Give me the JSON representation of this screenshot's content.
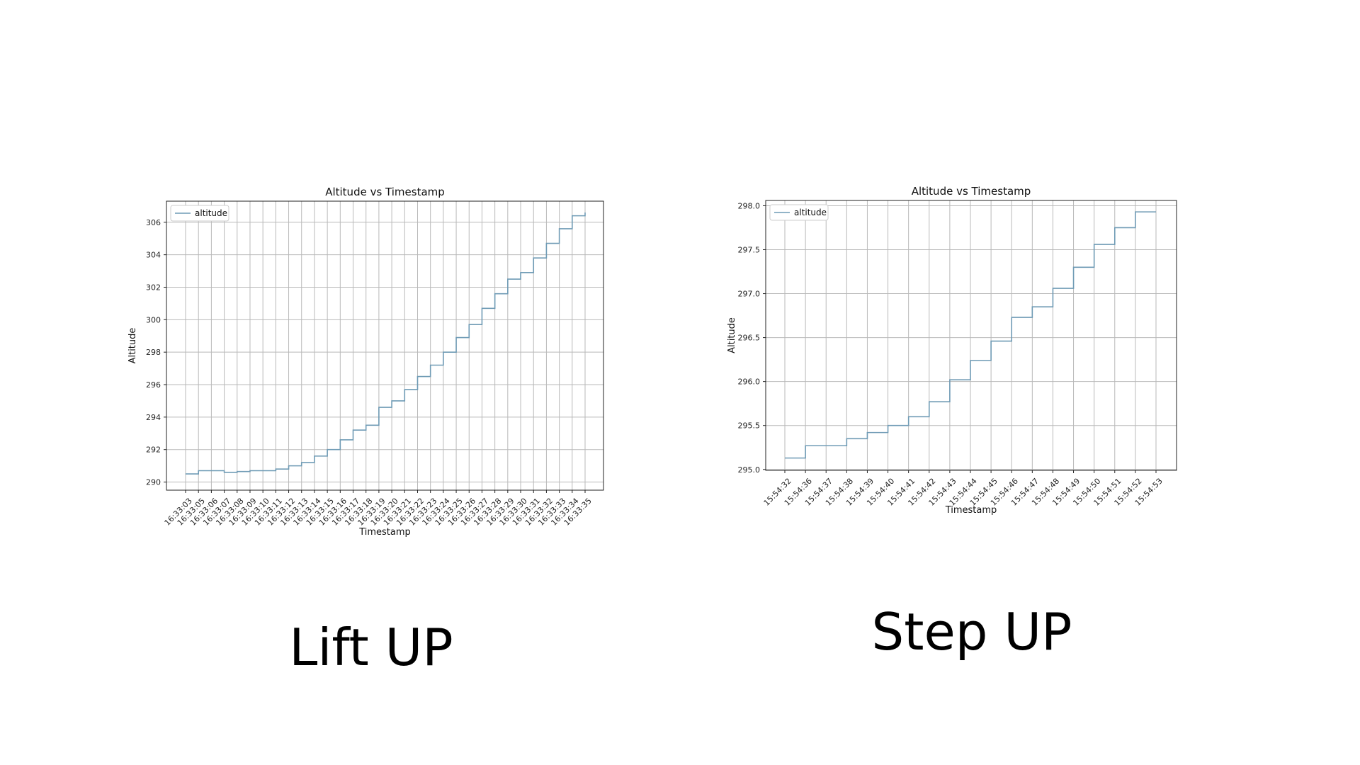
{
  "captions": {
    "left": "Lift UP",
    "right": "Step UP"
  },
  "chart_data": [
    {
      "type": "line",
      "line_style": "step",
      "title": "Altitude vs Timestamp",
      "xlabel": "Timestamp",
      "ylabel": "Altitude",
      "grid": true,
      "legend_position": "top-left",
      "color": "#6f9bb5",
      "ylim": [
        289.5,
        307.3
      ],
      "yticks": [
        290,
        292,
        294,
        296,
        298,
        300,
        302,
        304,
        306
      ],
      "categories": [
        "16:33:03",
        "16:33:05",
        "16:33:06",
        "16:33:07",
        "16:33:08",
        "16:33:09",
        "16:33:10",
        "16:33:11",
        "16:33:12",
        "16:33:13",
        "16:33:14",
        "16:33:15",
        "16:33:16",
        "16:33:17",
        "16:33:18",
        "16:33:19",
        "16:33:20",
        "16:33:21",
        "16:33:22",
        "16:33:23",
        "16:33:24",
        "16:33:25",
        "16:33:26",
        "16:33:27",
        "16:33:28",
        "16:33:29",
        "16:33:30",
        "16:33:31",
        "16:33:32",
        "16:33:33",
        "16:33:34",
        "16:33:35"
      ],
      "series": [
        {
          "name": "altitude",
          "values": [
            290.5,
            290.7,
            290.7,
            290.6,
            290.65,
            290.7,
            290.7,
            290.8,
            291.0,
            291.2,
            291.6,
            292.0,
            292.6,
            293.2,
            293.5,
            294.6,
            295.0,
            295.7,
            296.5,
            297.2,
            298.0,
            298.9,
            299.7,
            300.7,
            301.6,
            302.5,
            302.9,
            303.8,
            304.7,
            305.6,
            306.4,
            306.6
          ]
        }
      ]
    },
    {
      "type": "line",
      "line_style": "step",
      "title": "Altitude vs Timestamp",
      "xlabel": "Timestamp",
      "ylabel": "Altitude",
      "grid": true,
      "legend_position": "top-left",
      "color": "#6f9bb5",
      "ylim": [
        294.99,
        298.06
      ],
      "yticks": [
        295.0,
        295.5,
        296.0,
        296.5,
        297.0,
        297.5,
        298.0
      ],
      "ytick_labels": [
        "295.0",
        "295.5",
        "296.0",
        "296.5",
        "297.0",
        "297.5",
        "298.0"
      ],
      "categories": [
        "15:54:32",
        "15:54:36",
        "15:54:37",
        "15:54:38",
        "15:54:39",
        "15:54:40",
        "15:54:41",
        "15:54:42",
        "15:54:43",
        "15:54:44",
        "15:54:45",
        "15:54:46",
        "15:54:47",
        "15:54:48",
        "15:54:49",
        "15:54:50",
        "15:54:51",
        "15:54:52",
        "15:54:53"
      ],
      "series": [
        {
          "name": "altitude",
          "values": [
            295.13,
            295.27,
            295.27,
            295.35,
            295.42,
            295.5,
            295.6,
            295.77,
            296.02,
            296.24,
            296.46,
            296.73,
            296.85,
            297.06,
            297.3,
            297.56,
            297.75,
            297.93,
            297.93
          ]
        }
      ]
    }
  ]
}
